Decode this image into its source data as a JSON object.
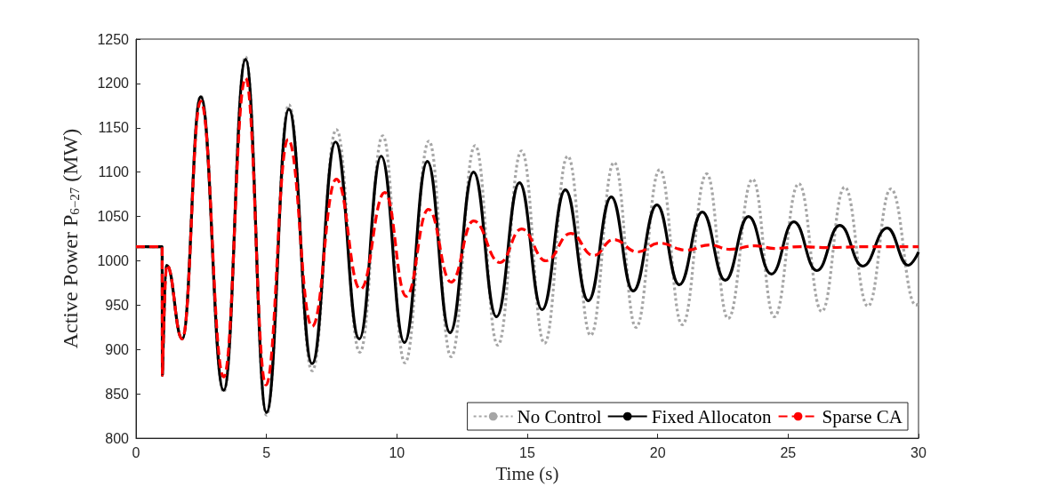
{
  "chart_data": {
    "type": "line",
    "xlabel": "Time (s)",
    "ylabel": "Active Power P$_{6−27}$ (MW)",
    "xlim": [
      0,
      30
    ],
    "xticks": [
      0,
      5,
      10,
      15,
      20,
      25,
      30
    ],
    "ylim": [
      800,
      1250
    ],
    "yticks": [
      800,
      850,
      900,
      950,
      1000,
      1050,
      1100,
      1150,
      1200,
      1250
    ],
    "grid": false,
    "legend": "bottom right",
    "marker": "none",
    "series": [
      {
        "name": "No Control",
        "color": "#a6a6a6",
        "line_style": "dotted",
        "x": [
          0,
          1.0,
          1.01,
          1.03,
          1.18,
          1.77,
          2.48,
          3.36,
          4.2,
          5.0,
          5.86,
          6.75,
          7.68,
          8.58,
          9.46,
          10.31,
          11.23,
          12.08,
          13.0,
          13.87,
          14.78,
          15.66,
          16.55,
          17.43,
          18.33,
          19.17,
          20.08,
          20.94,
          21.88,
          22.7,
          23.64,
          24.47,
          25.41,
          26.29,
          27.17,
          28.06,
          28.94,
          29.9,
          30
        ],
        "values": [
          1016,
          1016,
          871,
          871,
          995,
          912,
          1186,
          852,
          1230,
          826,
          1176,
          876,
          1148,
          897,
          1141,
          885,
          1135,
          892,
          1130,
          905,
          1124,
          907,
          1118,
          916,
          1111,
          925,
          1103,
          928,
          1098,
          935,
          1092,
          937,
          1087,
          943,
          1083,
          949,
          1081,
          950,
          952
        ]
      },
      {
        "name": "Fixed Allocaton",
        "color": "#000000",
        "line_style": "solid",
        "x": [
          0,
          1.0,
          1.01,
          1.03,
          1.18,
          1.77,
          2.48,
          3.36,
          4.2,
          5.0,
          5.86,
          6.75,
          7.65,
          8.56,
          9.4,
          10.29,
          11.17,
          12.04,
          12.94,
          13.82,
          14.7,
          15.57,
          16.46,
          17.34,
          18.22,
          19.06,
          19.97,
          20.83,
          21.71,
          22.59,
          23.48,
          24.36,
          25.22,
          26.1,
          26.98,
          27.86,
          28.8,
          29.6,
          30
        ],
        "values": [
          1016,
          1016,
          871,
          871,
          995,
          912,
          1185,
          854,
          1227,
          829,
          1171,
          884,
          1134,
          912,
          1118,
          908,
          1112,
          919,
          1100,
          937,
          1088,
          945,
          1080,
          955,
          1072,
          966,
          1063,
          973,
          1055,
          978,
          1050,
          985,
          1044,
          989,
          1040,
          994,
          1037,
          995,
          1010
        ]
      },
      {
        "name": "Sparse CA",
        "color": "#ff0000",
        "line_style": "dashed",
        "x": [
          0,
          1.0,
          1.01,
          1.03,
          1.18,
          1.77,
          2.48,
          3.36,
          4.2,
          4.98,
          5.83,
          6.75,
          7.68,
          8.6,
          9.54,
          10.36,
          11.21,
          12.08,
          12.94,
          13.95,
          14.78,
          15.72,
          16.66,
          17.54,
          18.31,
          19.23,
          20.06,
          21.1,
          21.99,
          22.76,
          23.75,
          24.47,
          25.46,
          26.5,
          28,
          30
        ],
        "values": [
          1016,
          1016,
          871,
          871,
          995,
          912,
          1180,
          869,
          1206,
          860,
          1137,
          926,
          1092,
          968,
          1077,
          960,
          1058,
          976,
          1045,
          998,
          1036,
          1000,
          1031,
          1006,
          1024,
          1010,
          1020,
          1012,
          1018,
          1013,
          1017,
          1014,
          1016,
          1015,
          1016,
          1016
        ]
      }
    ]
  }
}
